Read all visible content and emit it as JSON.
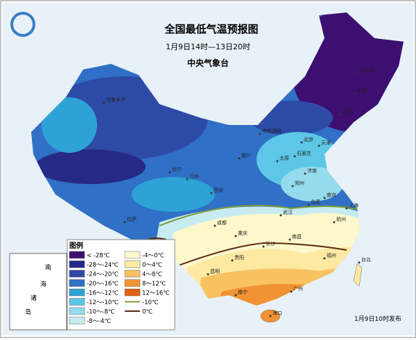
{
  "header": {
    "title": "全国最低气温预报图",
    "period": "1月9日14时—13日20时",
    "issuer": "中央气象台"
  },
  "cities": [
    "乌鲁木齐",
    "呼和浩特",
    "银川",
    "西宁",
    "兰州",
    "西安",
    "太原",
    "石家庄",
    "北京",
    "天津",
    "济南",
    "郑州",
    "拉萨",
    "成都",
    "重庆",
    "贵阳",
    "长沙",
    "南昌",
    "福州",
    "杭州",
    "合肥",
    "南京",
    "上海",
    "武汉",
    "昆明",
    "南宁",
    "广州",
    "海口",
    "台北",
    "沈阳",
    "长春",
    "哈尔滨"
  ],
  "legend": {
    "title": "图例",
    "items": [
      {
        "label": "< -28℃",
        "color": "#3d0f70"
      },
      {
        "label": "-28～-24℃",
        "color": "#262a86"
      },
      {
        "label": "-24～-20℃",
        "color": "#2d4aa6"
      },
      {
        "label": "-20～-16℃",
        "color": "#3070c6"
      },
      {
        "label": "-16～-12℃",
        "color": "#2ea2d6"
      },
      {
        "label": "-12～-10℃",
        "color": "#5cc7e6"
      },
      {
        "label": "-10～-8℃",
        "color": "#95dbee"
      },
      {
        "label": "-8～-4℃",
        "color": "#c6ecf1"
      },
      {
        "label": "-4～0℃",
        "color": "#fdf7cc"
      },
      {
        "label": "0～4℃",
        "color": "#fde9a2"
      },
      {
        "label": "4～8℃",
        "color": "#f8c261"
      },
      {
        "label": "8～12℃",
        "color": "#f19332"
      },
      {
        "label": "12～16℃",
        "color": "#df6212"
      }
    ],
    "lines": [
      {
        "label": "-10℃",
        "color": "#7e9a3a"
      },
      {
        "label": "0℃",
        "color": "#5a2a10"
      }
    ]
  },
  "inset": [
    "南",
    "海",
    "诸",
    "岛"
  ],
  "footer": "1月9日10时发布"
}
